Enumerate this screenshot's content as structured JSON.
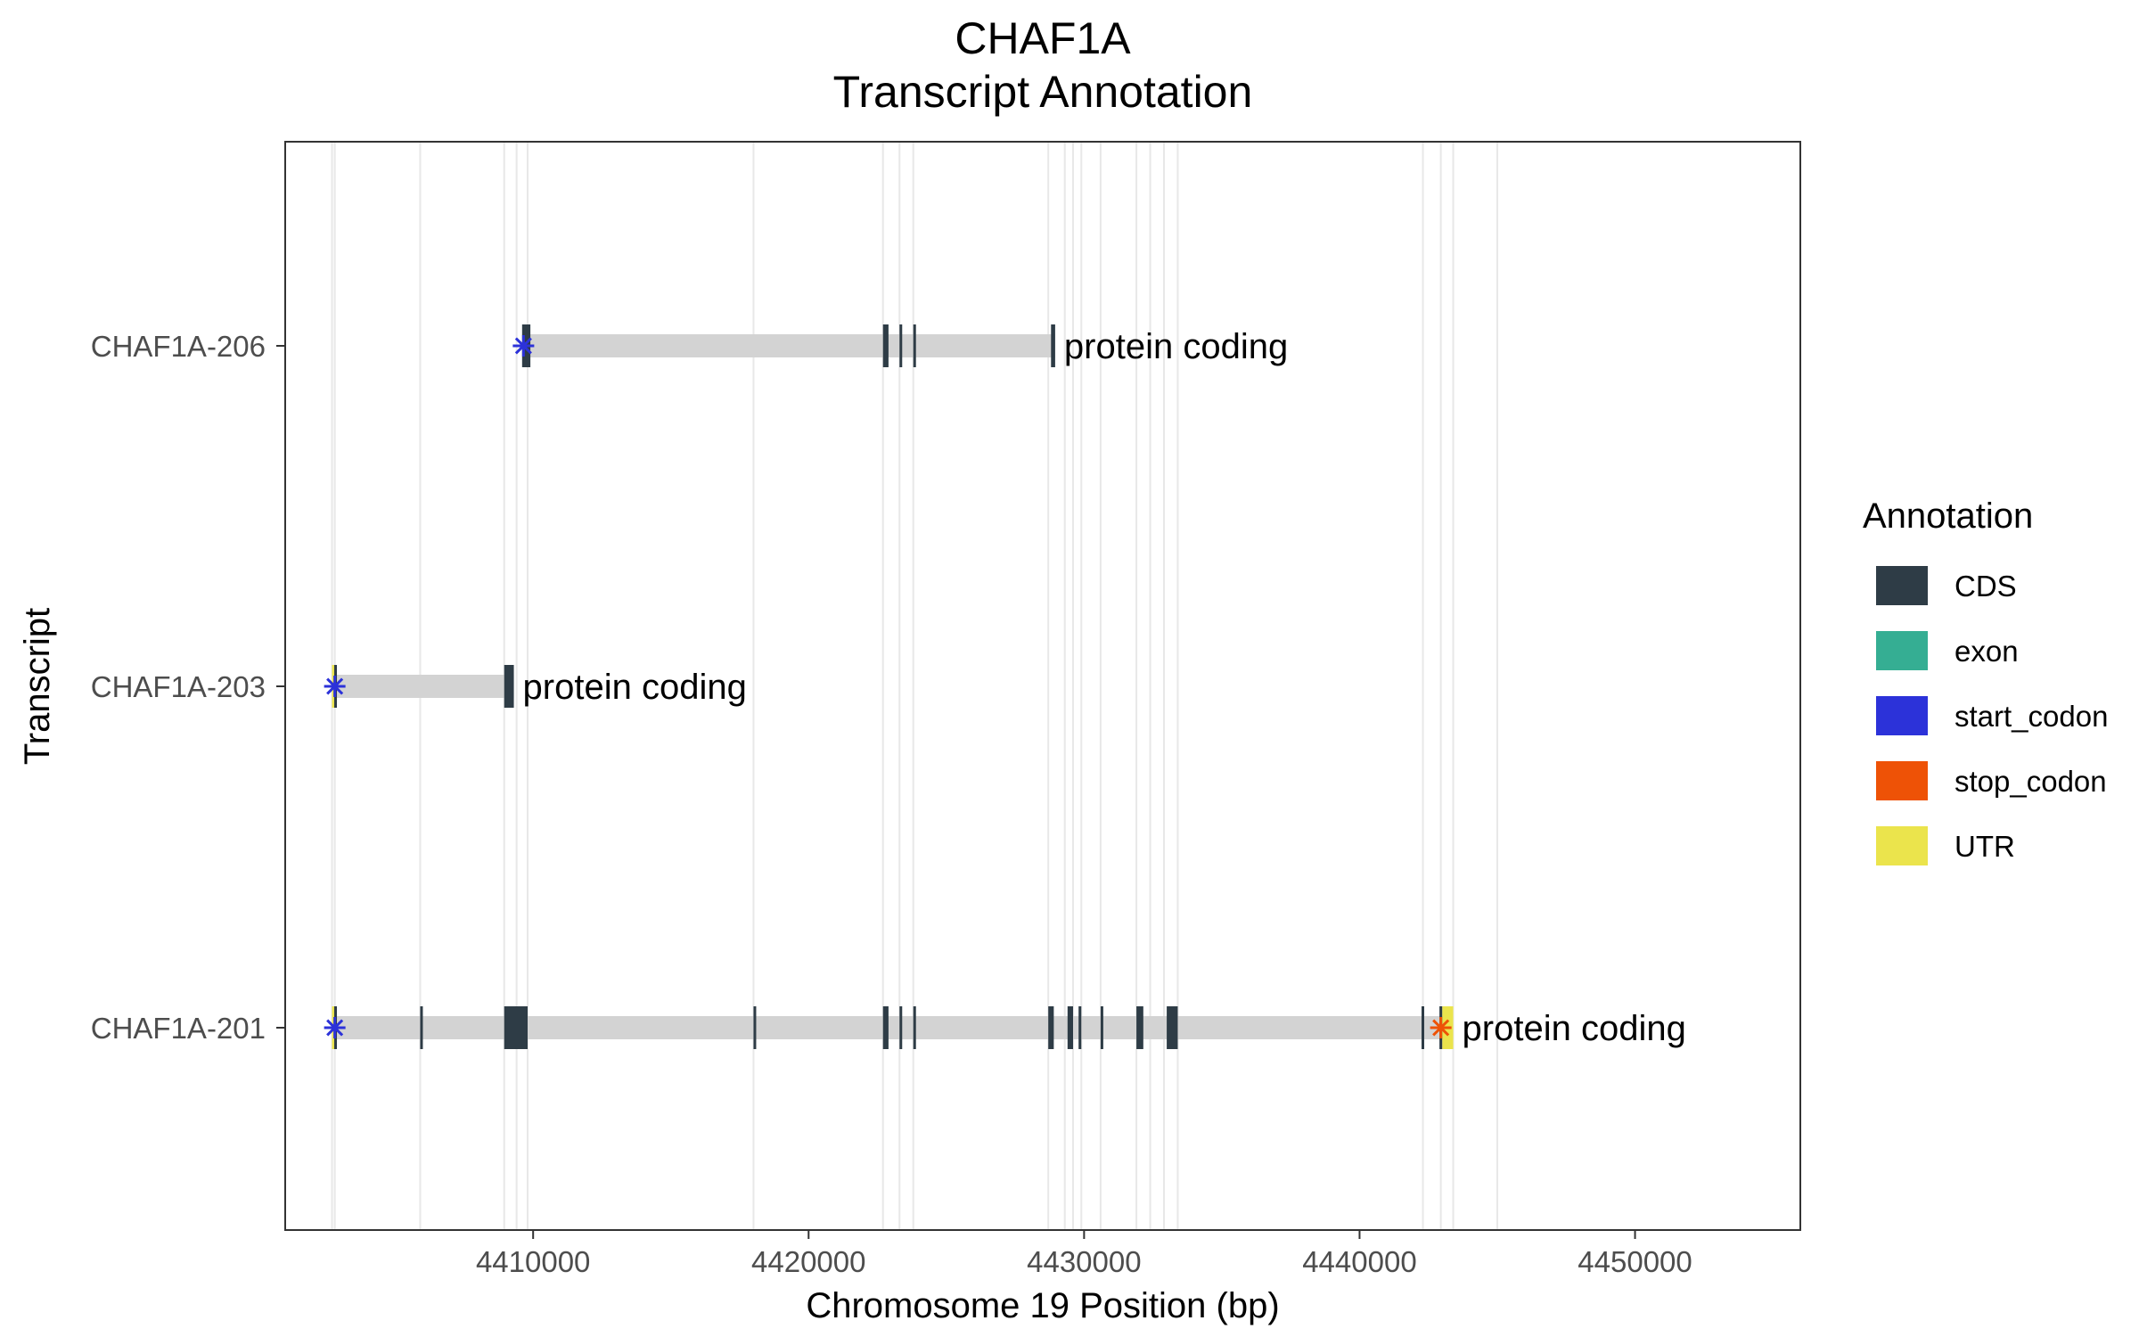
{
  "chart_data": {
    "type": "gene-structure",
    "title_line1": "CHAF1A",
    "title_line2": "Transcript Annotation",
    "xlabel": "Chromosome 19 Position (bp)",
    "ylabel": "Transcript",
    "xlim": [
      4401000,
      4456000
    ],
    "xticks": [
      4410000,
      4420000,
      4430000,
      4440000,
      4450000
    ],
    "xtick_labels": [
      "4410000",
      "4420000",
      "4430000",
      "4440000",
      "4450000"
    ],
    "vlines": [
      4402700,
      4402800,
      4405900,
      4408950,
      4409400,
      4409800,
      4418000,
      4422700,
      4423300,
      4423800,
      4428700,
      4429300,
      4429600,
      4429900,
      4430600,
      4431900,
      4432400,
      4432900,
      4433400,
      4442300,
      4442950,
      4443400,
      4445000
    ],
    "legend_title": "Annotation",
    "legend": [
      {
        "label": "CDS",
        "color": "#2e3c46"
      },
      {
        "label": "exon",
        "color": "#35ae93"
      },
      {
        "label": "start_codon",
        "color": "#2c32d9"
      },
      {
        "label": "stop_codon",
        "color": "#ee5206"
      },
      {
        "label": "UTR",
        "color": "#ebe44c"
      }
    ],
    "intron_color": "#d3d3d3",
    "transcripts": [
      {
        "name": "CHAF1A-206",
        "biotype": "protein coding",
        "start": 4409600,
        "end": 4428950,
        "cds": [
          [
            4409600,
            4409900
          ],
          [
            4422700,
            4422900
          ],
          [
            4423300,
            4423350
          ],
          [
            4423800,
            4423850
          ],
          [
            4428800,
            4428950
          ]
        ],
        "utr": [],
        "start_codon": 4409650,
        "stop_codon": null
      },
      {
        "name": "CHAF1A-203",
        "biotype": "protein coding",
        "start": 4402700,
        "end": 4409300,
        "cds": [
          [
            4402780,
            4402830
          ],
          [
            4408950,
            4409300
          ]
        ],
        "utr": [
          [
            4402700,
            4402780
          ]
        ],
        "start_codon": 4402800,
        "stop_codon": null
      },
      {
        "name": "CHAF1A-201",
        "biotype": "protein coding",
        "start": 4402700,
        "end": 4443400,
        "cds": [
          [
            4402780,
            4402830
          ],
          [
            4405900,
            4405950
          ],
          [
            4408950,
            4409800
          ],
          [
            4418000,
            4418050
          ],
          [
            4422700,
            4422900
          ],
          [
            4423300,
            4423350
          ],
          [
            4423800,
            4423850
          ],
          [
            4428700,
            4428900
          ],
          [
            4429400,
            4429600
          ],
          [
            4429800,
            4429900
          ],
          [
            4430600,
            4430650
          ],
          [
            4431900,
            4432150
          ],
          [
            4433000,
            4433400
          ],
          [
            4442250,
            4442300
          ],
          [
            4442900,
            4443000
          ]
        ],
        "utr": [
          [
            4402700,
            4402780
          ],
          [
            4443000,
            4443400
          ]
        ],
        "start_codon": 4402800,
        "stop_codon": 4442950
      }
    ]
  }
}
